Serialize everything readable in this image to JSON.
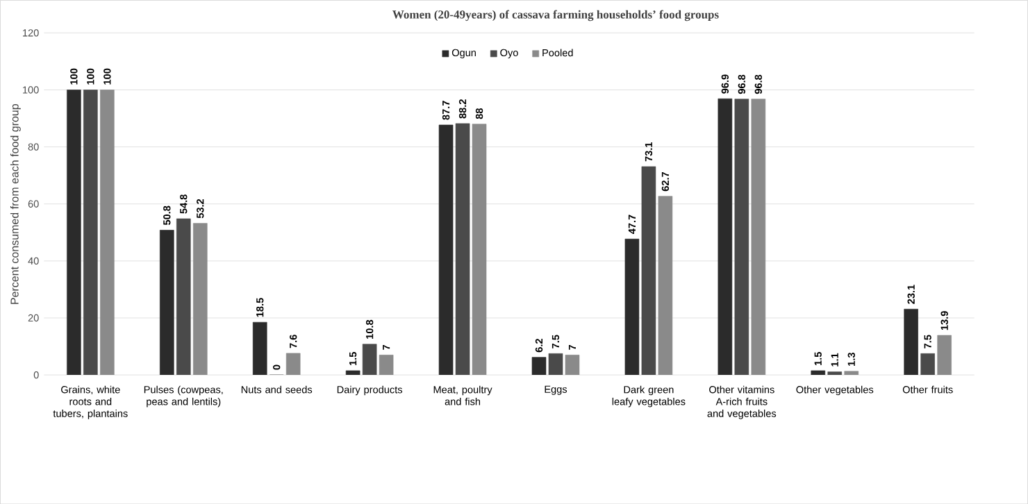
{
  "chart_data": {
    "type": "bar",
    "title": "Women (20-49years) of cassava farming households’ food groups",
    "ylabel": "Percent consumed from each food group",
    "categories": [
      "Grains, white roots and tubers, plantains",
      "Pulses (cowpeas, peas and lentils)",
      "Nuts and seeds",
      "Dairy products",
      "Meat, poultry and fish",
      "Eggs",
      "Dark green leafy vegetables",
      "Other vitamins A-rich fruits and vegetables",
      "Other vegetables",
      "Other fruits"
    ],
    "series": [
      {
        "name": "Ogun",
        "color": "#2b2b2b",
        "values": [
          100,
          50.8,
          18.5,
          1.5,
          87.7,
          6.2,
          47.7,
          96.9,
          1.5,
          23.1
        ]
      },
      {
        "name": "Oyo",
        "color": "#4a4a4a",
        "values": [
          100,
          54.8,
          0,
          10.8,
          88.2,
          7.5,
          73.1,
          96.8,
          1.1,
          7.5
        ]
      },
      {
        "name": "Pooled",
        "color": "#8a8a8a",
        "values": [
          100,
          53.2,
          7.6,
          7,
          88,
          7,
          62.7,
          96.8,
          1.3,
          13.9
        ]
      }
    ],
    "ylim": [
      0,
      120
    ],
    "yticks": [
      0,
      20,
      40,
      60,
      80,
      100,
      120
    ],
    "grid": "y",
    "legend": "top",
    "data_labels": true
  }
}
